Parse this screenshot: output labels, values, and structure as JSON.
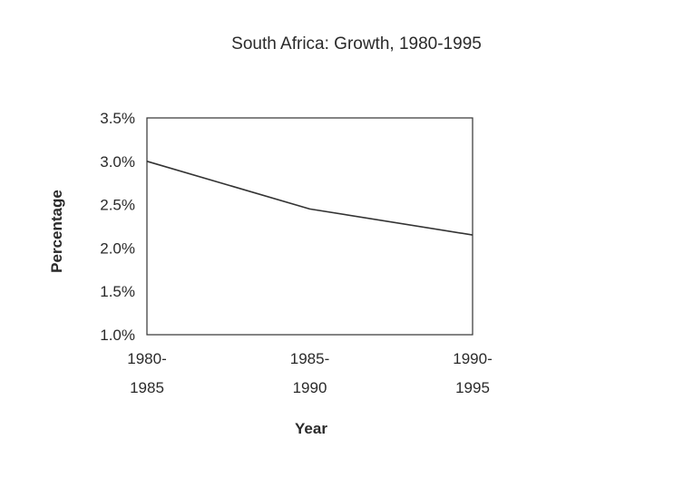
{
  "chart_data": {
    "type": "line",
    "title": "South Africa: Growth, 1980-1995",
    "xlabel": "Year",
    "ylabel": "Percentage",
    "categories": [
      [
        "1980-",
        "1985"
      ],
      [
        "1985-",
        "1990"
      ],
      [
        "1990-",
        "1995"
      ]
    ],
    "series": [
      {
        "values": [
          3.0,
          2.45,
          2.15
        ]
      }
    ],
    "ylim": [
      1.0,
      3.5
    ],
    "yticks": [
      {
        "value": 1.0,
        "label": "1.0%"
      },
      {
        "value": 1.5,
        "label": "1.5%"
      },
      {
        "value": 2.0,
        "label": "2.0%"
      },
      {
        "value": 2.5,
        "label": "2.5%"
      },
      {
        "value": 3.0,
        "label": "3.0%"
      },
      {
        "value": 3.5,
        "label": "3.5%"
      }
    ],
    "grid": false,
    "legend": "none",
    "colors": {
      "line": "#333333",
      "frame": "#333333",
      "text": "#2a2a2a"
    }
  }
}
